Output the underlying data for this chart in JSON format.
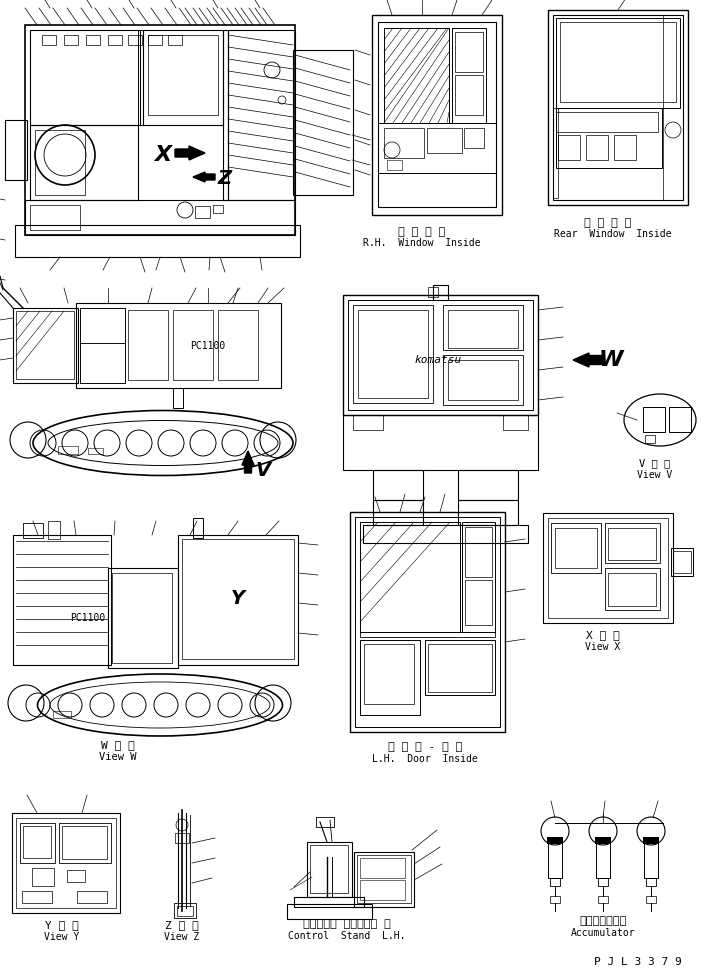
{
  "bg_color": "#ffffff",
  "lc": "#000000",
  "fig_width": 7.07,
  "fig_height": 9.74,
  "labels": {
    "rh_window_jp": "右 窓 内 側",
    "rh_window_en": "R.H.  Window  Inside",
    "rear_window_jp": "後 窓 内 側",
    "rear_window_en": "Rear  Window  Inside",
    "view_v_jp": "V 　 視",
    "view_v_en": "View V",
    "view_w_jp": "W 　 視",
    "view_w_en": "View W",
    "lh_door_jp": "左 ド ア - 内 側",
    "lh_door_en": "L.H.  Door  Inside",
    "view_x_jp": "X 　 視",
    "view_x_en": "View X",
    "view_y_jp": "Y 　 視",
    "view_y_en": "View Y",
    "view_z_jp": "Z 　 視",
    "view_z_en": "View Z",
    "control_jp": "コントロー ルスタンド 左",
    "control_en": "Control  Stand  L.H.",
    "accum_jp": "アキュムレータ",
    "accum_en": "Accumulator",
    "pjl": "P J L 3 3 7 9",
    "X": "X",
    "Z": "Z",
    "V": "V",
    "W": "W",
    "Y": "Y",
    "komatsu": "komatsu",
    "pc1100": "PC1100"
  }
}
